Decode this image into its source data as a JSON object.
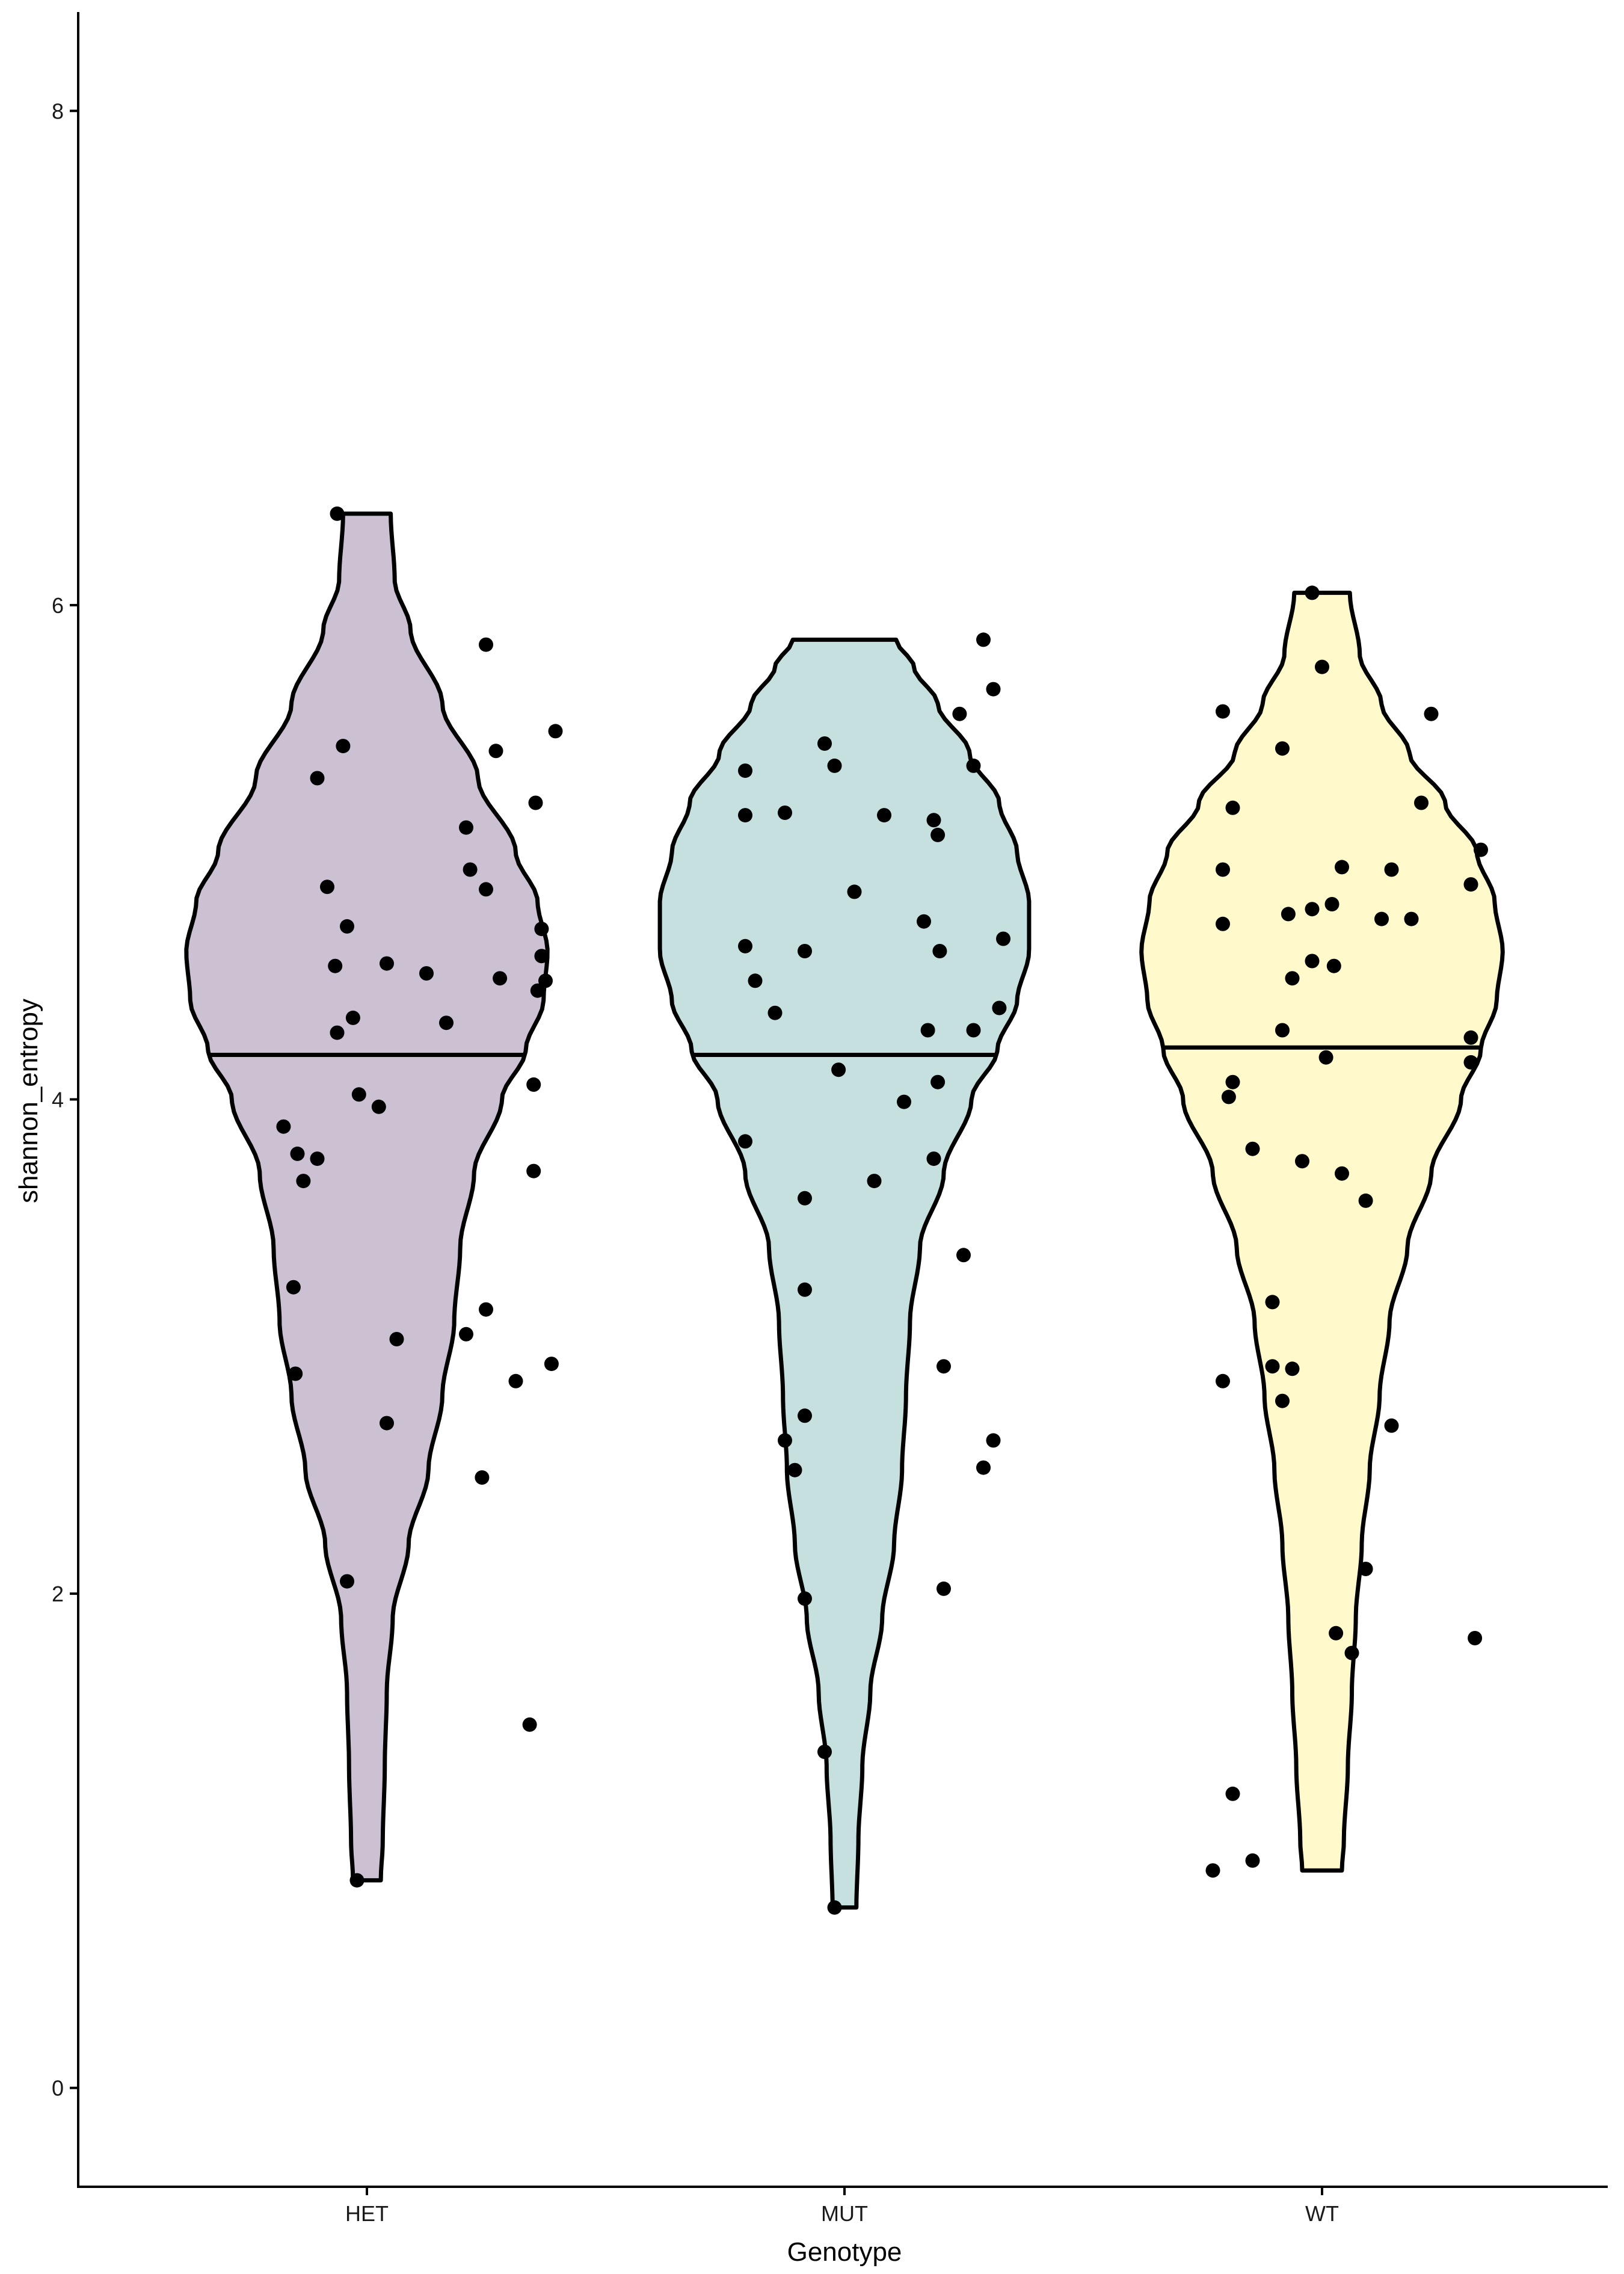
{
  "chart_data": {
    "type": "violin",
    "title": "",
    "xlabel": "Genotype",
    "ylabel": "shannon_entropy",
    "ylim": [
      -0.4,
      8.4
    ],
    "yticks": [
      0,
      2,
      4,
      6,
      8
    ],
    "categories": [
      "HET",
      "MUT",
      "WT"
    ],
    "grid": false,
    "legend": "none",
    "series": [
      {
        "category": "HET",
        "color": "#CCC0D3",
        "median": 4.18,
        "min": 0.84,
        "max": 6.37,
        "profile": [
          [
            0.84,
            0.07
          ],
          [
            1.0,
            0.08
          ],
          [
            1.3,
            0.09
          ],
          [
            1.6,
            0.1
          ],
          [
            1.9,
            0.13
          ],
          [
            2.2,
            0.21
          ],
          [
            2.5,
            0.31
          ],
          [
            2.8,
            0.38
          ],
          [
            3.1,
            0.44
          ],
          [
            3.4,
            0.47
          ],
          [
            3.7,
            0.54
          ],
          [
            4.0,
            0.68
          ],
          [
            4.2,
            0.8
          ],
          [
            4.4,
            0.89
          ],
          [
            4.6,
            0.91
          ],
          [
            4.8,
            0.86
          ],
          [
            5.0,
            0.75
          ],
          [
            5.3,
            0.56
          ],
          [
            5.6,
            0.38
          ],
          [
            5.9,
            0.22
          ],
          [
            6.1,
            0.14
          ],
          [
            6.37,
            0.12
          ]
        ],
        "points": [
          [
            -0.15,
            6.37
          ],
          [
            -0.25,
            5.3
          ],
          [
            -0.12,
            5.43
          ],
          [
            0.6,
            5.84
          ],
          [
            0.65,
            5.41
          ],
          [
            0.95,
            5.49
          ],
          [
            0.5,
            5.1
          ],
          [
            0.85,
            5.2
          ],
          [
            -0.2,
            4.86
          ],
          [
            0.52,
            4.93
          ],
          [
            0.6,
            4.85
          ],
          [
            -0.1,
            4.7
          ],
          [
            0.88,
            4.69
          ],
          [
            -0.16,
            4.54
          ],
          [
            0.1,
            4.55
          ],
          [
            0.3,
            4.51
          ],
          [
            0.67,
            4.49
          ],
          [
            0.9,
            4.48
          ],
          [
            0.86,
            4.44
          ],
          [
            0.88,
            4.58
          ],
          [
            -0.07,
            4.33
          ],
          [
            0.4,
            4.31
          ],
          [
            -0.15,
            4.27
          ],
          [
            0.84,
            4.06
          ],
          [
            -0.04,
            4.02
          ],
          [
            0.06,
            3.97
          ],
          [
            -0.42,
            3.89
          ],
          [
            -0.35,
            3.78
          ],
          [
            -0.25,
            3.76
          ],
          [
            -0.32,
            3.67
          ],
          [
            0.84,
            3.71
          ],
          [
            -0.37,
            3.24
          ],
          [
            0.6,
            3.15
          ],
          [
            0.5,
            3.05
          ],
          [
            0.15,
            3.03
          ],
          [
            0.93,
            2.93
          ],
          [
            0.75,
            2.86
          ],
          [
            -0.36,
            2.89
          ],
          [
            0.1,
            2.69
          ],
          [
            0.58,
            2.47
          ],
          [
            -0.1,
            2.05
          ],
          [
            0.82,
            1.47
          ],
          [
            -0.05,
            0.84
          ]
        ]
      },
      {
        "category": "MUT",
        "color": "#C6E0DF",
        "median": 4.18,
        "min": 0.73,
        "max": 5.86,
        "profile": [
          [
            0.73,
            0.06
          ],
          [
            1.0,
            0.07
          ],
          [
            1.3,
            0.09
          ],
          [
            1.6,
            0.13
          ],
          [
            1.9,
            0.19
          ],
          [
            2.2,
            0.25
          ],
          [
            2.5,
            0.29
          ],
          [
            2.8,
            0.31
          ],
          [
            3.1,
            0.33
          ],
          [
            3.4,
            0.38
          ],
          [
            3.7,
            0.5
          ],
          [
            4.0,
            0.64
          ],
          [
            4.2,
            0.77
          ],
          [
            4.4,
            0.87
          ],
          [
            4.6,
            0.93
          ],
          [
            4.8,
            0.93
          ],
          [
            5.0,
            0.87
          ],
          [
            5.2,
            0.78
          ],
          [
            5.4,
            0.63
          ],
          [
            5.6,
            0.47
          ],
          [
            5.75,
            0.35
          ],
          [
            5.86,
            0.26
          ]
        ],
        "points": [
          [
            0.7,
            5.86
          ],
          [
            -0.5,
            5.33
          ],
          [
            -0.1,
            5.44
          ],
          [
            -0.05,
            5.35
          ],
          [
            -0.5,
            5.15
          ],
          [
            -0.3,
            5.16
          ],
          [
            0.2,
            5.15
          ],
          [
            0.45,
            5.13
          ],
          [
            0.47,
            5.07
          ],
          [
            0.58,
            5.56
          ],
          [
            0.75,
            5.66
          ],
          [
            0.65,
            5.35
          ],
          [
            0.05,
            4.84
          ],
          [
            0.4,
            4.72
          ],
          [
            -0.5,
            4.62
          ],
          [
            -0.2,
            4.6
          ],
          [
            0.48,
            4.6
          ],
          [
            0.8,
            4.65
          ],
          [
            -0.45,
            4.48
          ],
          [
            -0.35,
            4.35
          ],
          [
            0.42,
            4.28
          ],
          [
            0.65,
            4.28
          ],
          [
            0.78,
            4.37
          ],
          [
            -0.03,
            4.12
          ],
          [
            0.47,
            4.07
          ],
          [
            0.3,
            3.99
          ],
          [
            -0.5,
            3.83
          ],
          [
            0.45,
            3.76
          ],
          [
            0.15,
            3.67
          ],
          [
            -0.2,
            3.6
          ],
          [
            0.6,
            3.37
          ],
          [
            -0.2,
            3.23
          ],
          [
            0.5,
            2.92
          ],
          [
            -0.2,
            2.72
          ],
          [
            -0.3,
            2.62
          ],
          [
            0.75,
            2.62
          ],
          [
            -0.25,
            2.5
          ],
          [
            0.7,
            2.51
          ],
          [
            0.5,
            2.02
          ],
          [
            -0.2,
            1.98
          ],
          [
            -0.1,
            1.36
          ],
          [
            -0.05,
            0.73
          ]
        ]
      },
      {
        "category": "WT",
        "color": "#FFF9CB",
        "median": 4.21,
        "min": 0.88,
        "max": 6.05,
        "profile": [
          [
            0.88,
            0.1
          ],
          [
            1.0,
            0.11
          ],
          [
            1.3,
            0.13
          ],
          [
            1.6,
            0.15
          ],
          [
            1.9,
            0.17
          ],
          [
            2.2,
            0.2
          ],
          [
            2.5,
            0.24
          ],
          [
            2.8,
            0.29
          ],
          [
            3.1,
            0.34
          ],
          [
            3.4,
            0.43
          ],
          [
            3.7,
            0.55
          ],
          [
            4.0,
            0.7
          ],
          [
            4.2,
            0.8
          ],
          [
            4.4,
            0.88
          ],
          [
            4.6,
            0.91
          ],
          [
            4.8,
            0.87
          ],
          [
            5.0,
            0.78
          ],
          [
            5.2,
            0.62
          ],
          [
            5.4,
            0.44
          ],
          [
            5.6,
            0.3
          ],
          [
            5.8,
            0.19
          ],
          [
            6.05,
            0.14
          ]
        ],
        "points": [
          [
            -0.05,
            6.05
          ],
          [
            0.0,
            5.75
          ],
          [
            -0.5,
            5.57
          ],
          [
            0.55,
            5.56
          ],
          [
            -0.2,
            5.42
          ],
          [
            -0.45,
            5.18
          ],
          [
            0.5,
            5.2
          ],
          [
            0.8,
            5.01
          ],
          [
            -0.5,
            4.93
          ],
          [
            0.1,
            4.94
          ],
          [
            0.35,
            4.93
          ],
          [
            0.75,
            4.87
          ],
          [
            -0.17,
            4.75
          ],
          [
            -0.05,
            4.77
          ],
          [
            0.05,
            4.79
          ],
          [
            0.3,
            4.73
          ],
          [
            0.45,
            4.73
          ],
          [
            -0.5,
            4.71
          ],
          [
            -0.15,
            4.49
          ],
          [
            -0.05,
            4.56
          ],
          [
            0.06,
            4.54
          ],
          [
            -0.2,
            4.28
          ],
          [
            0.75,
            4.25
          ],
          [
            0.02,
            4.17
          ],
          [
            0.75,
            4.15
          ],
          [
            -0.45,
            4.07
          ],
          [
            -0.47,
            4.01
          ],
          [
            -0.35,
            3.8
          ],
          [
            -0.1,
            3.75
          ],
          [
            0.1,
            3.7
          ],
          [
            0.22,
            3.59
          ],
          [
            -0.25,
            3.18
          ],
          [
            -0.25,
            2.92
          ],
          [
            -0.15,
            2.91
          ],
          [
            -0.5,
            2.86
          ],
          [
            -0.2,
            2.78
          ],
          [
            0.35,
            2.68
          ],
          [
            0.22,
            2.1
          ],
          [
            0.07,
            1.84
          ],
          [
            0.15,
            1.76
          ],
          [
            0.77,
            1.82
          ],
          [
            -0.45,
            1.19
          ],
          [
            -0.35,
            0.92
          ],
          [
            -0.55,
            0.88
          ]
        ]
      }
    ]
  }
}
